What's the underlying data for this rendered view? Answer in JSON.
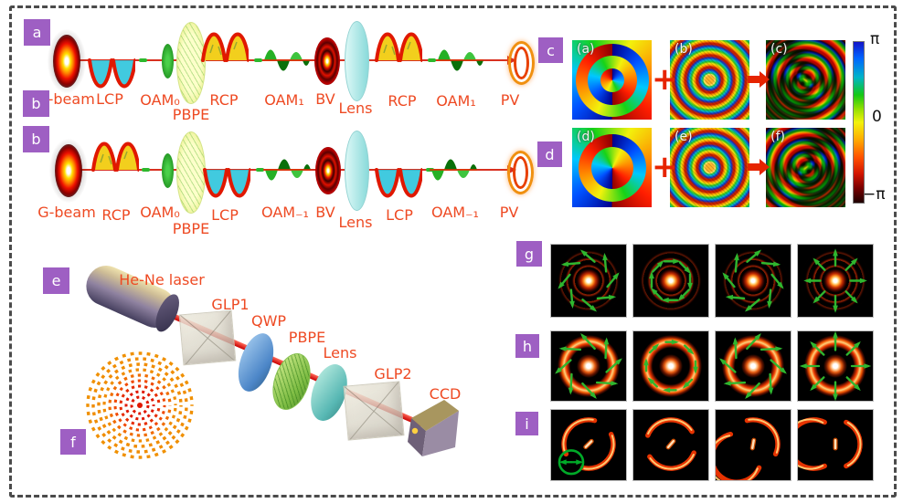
{
  "colors": {
    "label_red": "#ee4a23",
    "tag_purple": "#9e5fc3",
    "operator_red": "#e62400",
    "arrow_green": "#2fb62f"
  },
  "panel_a": {
    "tag": "a",
    "labels": [
      "G-beam",
      "LCP",
      "OAM₀",
      "PBPE",
      "RCP",
      "OAM₁",
      "BV",
      "Lens",
      "RCP",
      "OAM₁",
      "PV"
    ]
  },
  "panel_b": {
    "tag": "b",
    "labels": [
      "G-beam",
      "RCP",
      "OAM₀",
      "PBPE",
      "LCP",
      "OAM₋₁",
      "BV",
      "Lens",
      "LCP",
      "OAM₋₁",
      "PV"
    ]
  },
  "panel_c": {
    "tag": "c",
    "map_labels": [
      "(a)",
      "(b)",
      "(c)"
    ],
    "operator_plus": "+"
  },
  "panel_d": {
    "tag": "d",
    "map_labels": [
      "(d)",
      "(e)",
      "(f)"
    ],
    "operator_plus": "+"
  },
  "colorbar": {
    "top": "π",
    "middle": "0",
    "bottom": "−π"
  },
  "panel_e": {
    "tag": "e",
    "labels": {
      "laser": "He-Ne laser",
      "glp1": "GLP1",
      "qwp": "QWP",
      "pbpe": "PBPE",
      "lens": "Lens",
      "glp2": "GLP2",
      "ccd": "CCD"
    }
  },
  "panel_f": {
    "tag": "f"
  },
  "results": {
    "g": {
      "tag": "g",
      "cells": [
        {
          "arrows": "spiral-ccw"
        },
        {
          "arrows": "octagon"
        },
        {
          "arrows": "spiral-cw"
        },
        {
          "arrows": "radial"
        }
      ]
    },
    "h": {
      "tag": "h",
      "cells": [
        {
          "arrows": "tilt-ccw"
        },
        {
          "arrows": "tangent"
        },
        {
          "arrows": "tilt-cw"
        },
        {
          "arrows": "radial"
        }
      ]
    },
    "i": {
      "tag": "i",
      "cells": [
        {
          "gaps": [
            130,
            310
          ],
          "dash": -45,
          "analyzer": true
        },
        {
          "gaps": [
            175,
            355
          ],
          "dash": -40
        },
        {
          "gaps": [
            230,
            50
          ],
          "dash": -10
        },
        {
          "gaps": [
            270,
            90
          ],
          "dash": 0
        }
      ]
    }
  }
}
